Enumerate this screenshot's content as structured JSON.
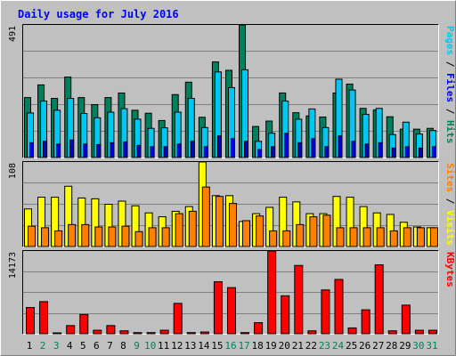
{
  "title": "Daily usage for July 2016",
  "colors": {
    "background": "#c0c0c0",
    "plot_bg": "#c0c0c0",
    "grid": "#808080",
    "hits": "#00805c",
    "files": "#00c8f0",
    "pages": "#0000f0",
    "visits": "#ffff00",
    "sites": "#ff8000",
    "kbytes": "#ff0000",
    "weekday_label": "#000000",
    "weekend_label": "#00805c"
  },
  "chart_data": [
    {
      "type": "bar",
      "name": "hits-files-pages",
      "y_tick_label": "491",
      "ylim": [
        0,
        491
      ],
      "right_label": [
        {
          "text": "Pages",
          "color": "#00c8f0"
        },
        {
          "text": " / ",
          "color": "#000000"
        },
        {
          "text": "Files",
          "color": "#0000f0"
        },
        {
          "text": " / ",
          "color": "#000000"
        },
        {
          "text": "Hits",
          "color": "#00805c"
        }
      ],
      "x": [
        1,
        2,
        3,
        4,
        5,
        6,
        7,
        8,
        9,
        10,
        11,
        12,
        13,
        14,
        15,
        16,
        17,
        18,
        19,
        20,
        21,
        22,
        23,
        24,
        25,
        26,
        27,
        28,
        29,
        30,
        31
      ],
      "series": [
        {
          "name": "Hits",
          "values": [
            222,
            269,
            219,
            298,
            222,
            196,
            222,
            239,
            175,
            164,
            137,
            233,
            279,
            149,
            354,
            323,
            491,
            115,
            135,
            239,
            166,
            154,
            150,
            239,
            272,
            182,
            176,
            151,
            105,
            105,
            108
          ]
        },
        {
          "name": "Files",
          "values": [
            165,
            209,
            175,
            219,
            163,
            147,
            168,
            181,
            142,
            108,
            110,
            168,
            219,
            111,
            317,
            259,
            325,
            60,
            90,
            209,
            142,
            180,
            111,
            290,
            250,
            160,
            182,
            85,
            131,
            87,
            100
          ]
        },
        {
          "name": "Pages",
          "values": [
            55,
            60,
            50,
            65,
            50,
            48,
            55,
            58,
            45,
            40,
            40,
            50,
            60,
            40,
            80,
            70,
            60,
            30,
            40,
            90,
            55,
            70,
            40,
            80,
            60,
            50,
            55,
            35,
            40,
            35,
            40
          ]
        }
      ]
    },
    {
      "type": "bar",
      "name": "visits-sites",
      "y_tick_label": "108",
      "ylim": [
        0,
        108
      ],
      "right_label": [
        {
          "text": "Sites",
          "color": "#ff8000"
        },
        {
          "text": " / ",
          "color": "#000000"
        },
        {
          "text": "Visits",
          "color": "#ffff00"
        }
      ],
      "x": [
        1,
        2,
        3,
        4,
        5,
        6,
        7,
        8,
        9,
        10,
        11,
        12,
        13,
        14,
        15,
        16,
        17,
        18,
        19,
        20,
        21,
        22,
        23,
        24,
        25,
        26,
        27,
        28,
        29,
        30,
        31
      ],
      "series": [
        {
          "name": "Visits",
          "values": [
            48,
            63,
            63,
            77,
            62,
            61,
            54,
            58,
            52,
            43,
            38,
            45,
            51,
            108,
            65,
            65,
            32,
            42,
            50,
            63,
            57,
            42,
            42,
            64,
            63,
            51,
            43,
            41,
            31,
            25,
            24
          ]
        },
        {
          "name": "Sites",
          "values": [
            26,
            24,
            20,
            28,
            28,
            25,
            25,
            26,
            19,
            24,
            24,
            42,
            45,
            76,
            64,
            55,
            33,
            39,
            20,
            20,
            28,
            38,
            40,
            24,
            24,
            24,
            24,
            20,
            24,
            24,
            24
          ]
        }
      ]
    },
    {
      "type": "bar",
      "name": "kbytes",
      "y_tick_label": "14173",
      "ylim": [
        0,
        14173
      ],
      "right_label": [
        {
          "text": "KBytes",
          "color": "#ff0000"
        }
      ],
      "x": [
        1,
        2,
        3,
        4,
        5,
        6,
        7,
        8,
        9,
        10,
        11,
        12,
        13,
        14,
        15,
        16,
        17,
        18,
        19,
        20,
        21,
        22,
        23,
        24,
        25,
        26,
        27,
        28,
        29,
        30,
        31
      ],
      "series": [
        {
          "name": "KBytes",
          "values": [
            4500,
            5500,
            150,
            1400,
            3300,
            600,
            1400,
            500,
            200,
            200,
            600,
            5200,
            200,
            300,
            8900,
            7900,
            200,
            1900,
            14173,
            6500,
            11700,
            500,
            7500,
            9300,
            1000,
            4100,
            11800,
            500,
            4900,
            600,
            600
          ]
        }
      ]
    }
  ],
  "x_labels": [
    {
      "text": "1",
      "weekend": false
    },
    {
      "text": "2",
      "weekend": true
    },
    {
      "text": "3",
      "weekend": true
    },
    {
      "text": "4",
      "weekend": false
    },
    {
      "text": "5",
      "weekend": false
    },
    {
      "text": "6",
      "weekend": false
    },
    {
      "text": "7",
      "weekend": false
    },
    {
      "text": "8",
      "weekend": false
    },
    {
      "text": "9",
      "weekend": true
    },
    {
      "text": "10",
      "weekend": true
    },
    {
      "text": "11",
      "weekend": false
    },
    {
      "text": "12",
      "weekend": false
    },
    {
      "text": "13",
      "weekend": false
    },
    {
      "text": "14",
      "weekend": false
    },
    {
      "text": "15",
      "weekend": false
    },
    {
      "text": "16",
      "weekend": true
    },
    {
      "text": "17",
      "weekend": true
    },
    {
      "text": "18",
      "weekend": false
    },
    {
      "text": "19",
      "weekend": false
    },
    {
      "text": "20",
      "weekend": false
    },
    {
      "text": "21",
      "weekend": false
    },
    {
      "text": "22",
      "weekend": false
    },
    {
      "text": "23",
      "weekend": true
    },
    {
      "text": "24",
      "weekend": true
    },
    {
      "text": "25",
      "weekend": false
    },
    {
      "text": "26",
      "weekend": false
    },
    {
      "text": "27",
      "weekend": false
    },
    {
      "text": "28",
      "weekend": false
    },
    {
      "text": "29",
      "weekend": false
    },
    {
      "text": "30",
      "weekend": true
    },
    {
      "text": "31",
      "weekend": true
    }
  ]
}
